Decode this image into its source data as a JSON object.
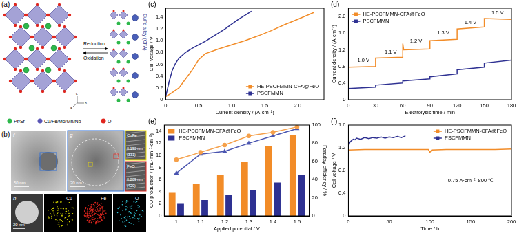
{
  "figure": {
    "a": {
      "panel": "(a)",
      "arrows": [
        "Reduction",
        "Oxidation"
      ],
      "phase": "CuFe alloy (CFA)",
      "axes": [
        "a",
        "b",
        "c"
      ],
      "legend": [
        {
          "label": "Pr/Sr",
          "color": "#2db84b"
        },
        {
          "label": "Cu/Fe/Mo/Mn/Nb",
          "color": "#5a55b5"
        },
        {
          "label": "O",
          "color": "#e0261e"
        }
      ]
    },
    "b": {
      "panel": "(b)",
      "images": [
        {
          "label": "f",
          "scale_bar": "50 nm"
        },
        {
          "label": "g",
          "scale_bar": "20 nm"
        }
      ],
      "insets": [
        {
          "phase": "CuFe",
          "d_spacing": "0.193 nm",
          "plane": "(331)",
          "color": "#f2e100"
        },
        {
          "phase": "FeO",
          "d_spacing": "0.209 nm",
          "plane": "(420)",
          "color": "#e0261e"
        }
      ],
      "mapping": {
        "label": "h",
        "scale_bar": "20 nm",
        "elements": [
          {
            "name": "Cu",
            "color": "#d6d600"
          },
          {
            "name": "Fe",
            "color": "#e0261e"
          },
          {
            "name": "O",
            "color": "#33c3d6"
          }
        ]
      }
    }
  },
  "chart_data": [
    {
      "panel": "(c)",
      "type": "line",
      "x_label": "Current density / (A·cm⁻²)",
      "y_label": "Cell voltage / V",
      "xlim": [
        0,
        2.4
      ],
      "xticks": [
        0,
        0.5,
        {
          "value": 1,
          "label": "1.0"
        },
        1.5,
        {
          "value": 2,
          "label": "2.0"
        }
      ],
      "ylim": [
        0,
        1.55
      ],
      "yticks": [
        0,
        0.2,
        0.4,
        0.6,
        0.8,
        {
          "value": 1,
          "label": "1.0"
        },
        1.2,
        1.4
      ],
      "grid": false,
      "legend": "bottom-right",
      "series": [
        {
          "name": "HE-PSCFMMN-CFA@FeO",
          "color": "#f28c28",
          "x": [
            0,
            0.1,
            0.2,
            0.3,
            0.4,
            0.5,
            0.6,
            0.8,
            1.0,
            1.2,
            1.4,
            1.6,
            1.8,
            2.0,
            2.25
          ],
          "values": [
            0.05,
            0.12,
            0.2,
            0.35,
            0.5,
            0.68,
            0.78,
            0.86,
            0.93,
            1.0,
            1.08,
            1.17,
            1.27,
            1.36,
            1.48
          ]
        },
        {
          "name": "PSCFMMN",
          "color": "#2e3192",
          "x": [
            0,
            0.05,
            0.1,
            0.15,
            0.2,
            0.3,
            0.4,
            0.5,
            0.6,
            0.7,
            0.8,
            0.9,
            1.0,
            1.1,
            1.2,
            1.3
          ],
          "values": [
            0.05,
            0.3,
            0.5,
            0.62,
            0.7,
            0.8,
            0.87,
            0.93,
            0.99,
            1.06,
            1.13,
            1.2,
            1.28,
            1.36,
            1.43,
            1.5
          ]
        }
      ]
    },
    {
      "panel": "(d)",
      "type": "line",
      "x_label": "Electrolysis time / min",
      "y_label": "Current density / (A·cm⁻²)",
      "xlim": [
        0,
        180
      ],
      "xticks": [
        0,
        30,
        60,
        90,
        120,
        150,
        180
      ],
      "ylim": [
        0,
        2.2
      ],
      "yticks": [
        0,
        0.4,
        0.8,
        1.2,
        1.6,
        {
          "value": 2,
          "label": "2.0"
        }
      ],
      "grid": false,
      "legend": "top-left",
      "annotations": [
        {
          "text": "1.0 V",
          "x": 10,
          "y": 0.95
        },
        {
          "text": "1.1 V",
          "x": 40,
          "y": 1.15
        },
        {
          "text": "1.2 V",
          "x": 68,
          "y": 1.4
        },
        {
          "text": "1.3 V",
          "x": 98,
          "y": 1.6
        },
        {
          "text": "1.4 V",
          "x": 128,
          "y": 1.86
        },
        {
          "text": "1.5 V",
          "x": 158,
          "y": 2.08
        }
      ],
      "series": [
        {
          "name": "HE-PSCFMMN-CFA@FeO",
          "color": "#f28c28",
          "x": [
            0,
            29.9,
            30,
            59.9,
            60,
            61,
            89.9,
            90,
            119.9,
            120,
            149.9,
            150,
            180
          ],
          "values": [
            0.78,
            0.8,
            1.0,
            1.02,
            1.35,
            1.2,
            1.22,
            1.42,
            1.45,
            1.7,
            1.75,
            1.95,
            1.93
          ]
        },
        {
          "name": "PSCFMMN",
          "color": "#2e3192",
          "x": [
            0,
            29.9,
            30,
            59.9,
            60,
            89.9,
            90,
            119.9,
            120,
            149.9,
            150,
            180
          ],
          "values": [
            0.27,
            0.3,
            0.35,
            0.4,
            0.45,
            0.5,
            0.55,
            0.62,
            0.72,
            0.78,
            0.88,
            0.95
          ]
        }
      ]
    },
    {
      "panel": "(e)",
      "type": "bar",
      "x_label": "Applied potential / V",
      "y_label": "CO production / (mL·min⁻¹·cm⁻²)",
      "y2_label": "Faraday efficiency / %",
      "categories": [
        "1",
        "1.1",
        "1.2",
        "1.3",
        "1.4",
        "1.5"
      ],
      "ylim": [
        0,
        15
      ],
      "yticks": [
        0,
        2,
        4,
        6,
        8,
        10,
        12,
        14
      ],
      "y2lim": [
        0,
        100
      ],
      "y2ticks": [
        0,
        20,
        40,
        60,
        80,
        100
      ],
      "grid": false,
      "legend": "top-left",
      "series": [
        {
          "name": "HE-PSCFMMN-CFA@FeO",
          "color": "#f28c28",
          "type": "bar",
          "values": [
            3.8,
            5.3,
            6.8,
            8.9,
            11.5,
            13.3
          ]
        },
        {
          "name": "PSCFMMN",
          "color": "#2e3192",
          "type": "bar",
          "values": [
            2.0,
            2.6,
            3.4,
            4.3,
            5.5,
            6.7
          ]
        },
        {
          "name": "HE-PSCFMMN-CFA@FeO",
          "color": "#f5a04a",
          "type": "line",
          "axis": "y2",
          "marker": "circle",
          "values": [
            62,
            70,
            78,
            88,
            92,
            98
          ]
        },
        {
          "name": "PSCFMMN",
          "color": "#4a55b0",
          "type": "line",
          "axis": "y2",
          "marker": "triangle",
          "values": [
            47,
            68,
            71,
            80,
            88,
            96
          ]
        }
      ]
    },
    {
      "panel": "(f)",
      "type": "line",
      "x_label": "Time / h",
      "y_label": "Cell voltage / V",
      "xlim": [
        0,
        200
      ],
      "xticks": [
        0,
        50,
        100,
        150,
        200
      ],
      "ylim": [
        0,
        1.6
      ],
      "yticks": [
        0,
        0.4,
        0.8,
        1.2,
        1.6
      ],
      "grid": false,
      "legend": "top-right",
      "annotations": [
        {
          "text": "0.75 A·cm⁻², 800 ℃",
          "x": 122,
          "y": 0.62
        }
      ],
      "series": [
        {
          "name": "HE-PSCFMMN-CFA@FeO",
          "color": "#f28c28",
          "x": [
            0,
            20,
            40,
            60,
            80,
            98,
            100,
            102,
            120,
            140,
            160,
            180,
            200
          ],
          "values": [
            1.16,
            1.17,
            1.17,
            1.17,
            1.17,
            1.17,
            1.12,
            1.16,
            1.17,
            1.17,
            1.17,
            1.17,
            1.18
          ]
        },
        {
          "name": "PSCFMMN",
          "color": "#2e3192",
          "x": [
            0,
            1,
            2,
            4,
            6,
            8,
            10,
            15,
            20,
            25,
            30,
            35,
            40,
            45,
            50,
            55,
            60,
            65,
            70
          ],
          "values": [
            1.2,
            1.27,
            1.3,
            1.33,
            1.35,
            1.34,
            1.37,
            1.35,
            1.38,
            1.36,
            1.38,
            1.37,
            1.39,
            1.37,
            1.39,
            1.38,
            1.4,
            1.38,
            1.41
          ]
        }
      ]
    }
  ]
}
